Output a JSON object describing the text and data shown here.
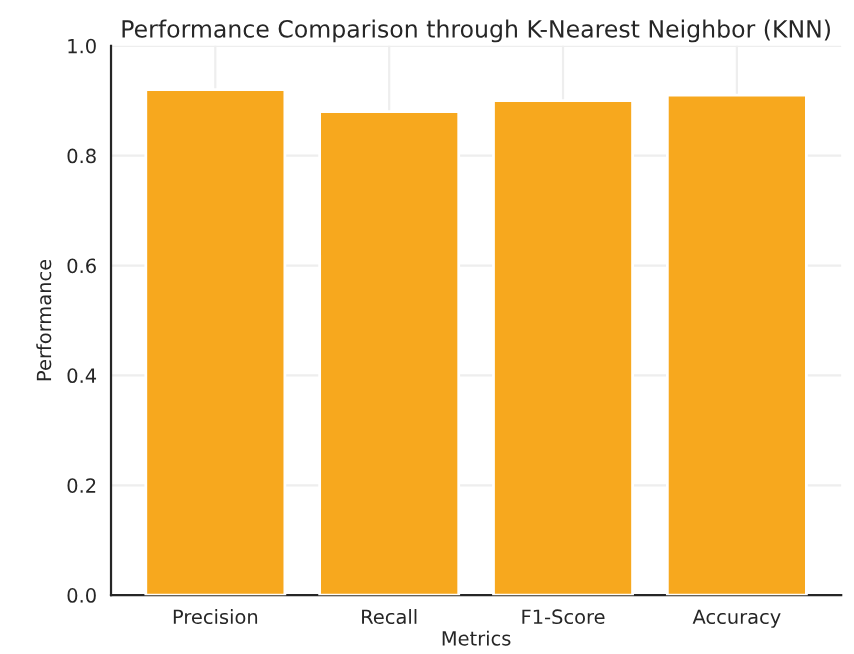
{
  "chart_data": {
    "type": "bar",
    "title": "Performance Comparison through K-Nearest Neighbor (KNN)",
    "xlabel": "Metrics",
    "ylabel": "Performance",
    "categories": [
      "Precision",
      "Recall",
      "F1-Score",
      "Accuracy"
    ],
    "values": [
      0.92,
      0.88,
      0.9,
      0.91
    ],
    "color": "#f7a81e",
    "ylim": [
      0,
      1.0
    ],
    "yticks": [
      {
        "value": 0,
        "label": "0.0"
      },
      {
        "value": 0.2,
        "label": "0.2"
      },
      {
        "value": 0.4,
        "label": "0.4"
      },
      {
        "value": 0.6,
        "label": "0.6"
      },
      {
        "value": 0.8,
        "label": "0.8"
      },
      {
        "value": 1.0,
        "label": "1.0"
      }
    ],
    "grid": true
  }
}
